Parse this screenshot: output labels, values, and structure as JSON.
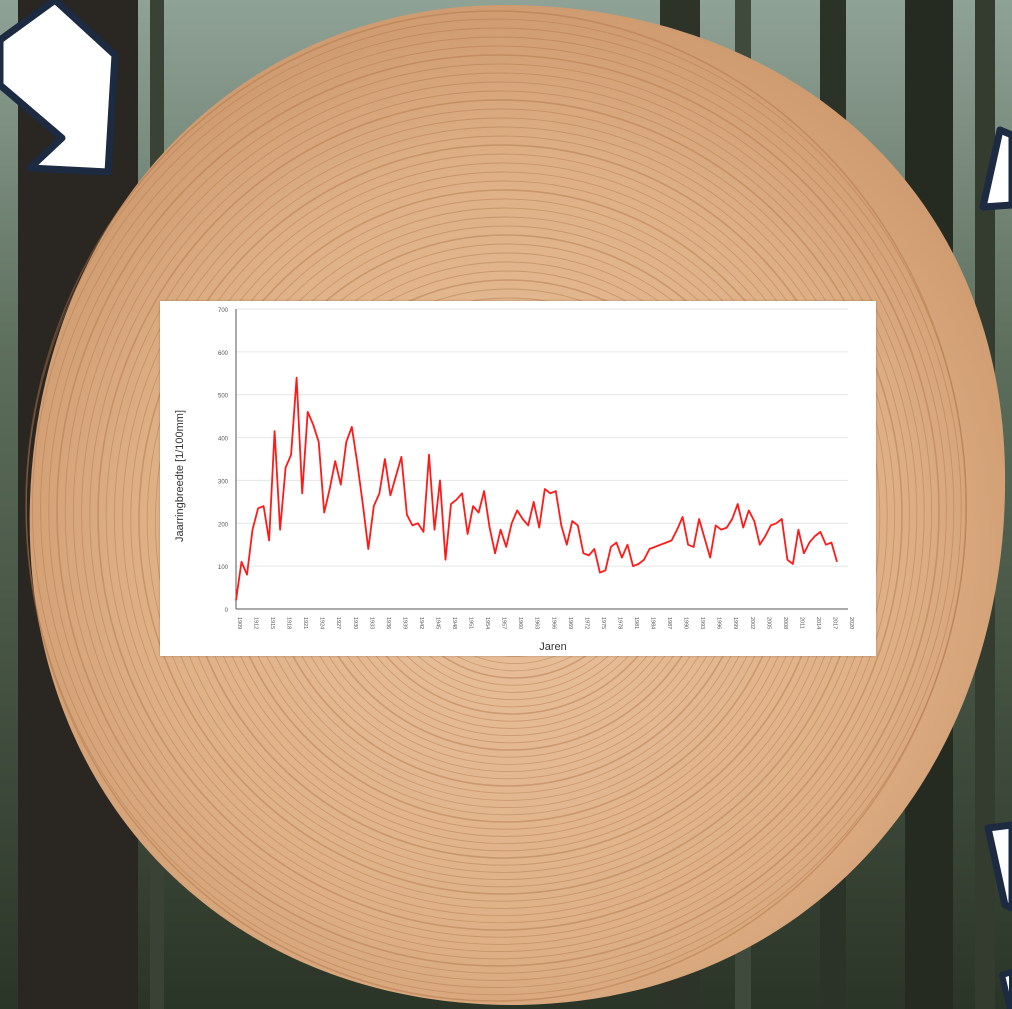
{
  "colors": {
    "line": "#ff1a1a",
    "axis": "#555555",
    "grid": "#e6e6e6",
    "wood": "#e2b389",
    "ring": "#b07448",
    "forest_dark": "#1f271d",
    "forest_light": "#6f8070",
    "arrow_fill": "#ffffff",
    "arrow_stroke": "#1c2a42"
  },
  "decor": {
    "icons": [
      "arrow-top-left-icon",
      "arrow-top-right-icon",
      "arrow-bottom-right-icon",
      "arrow-bottom-right-partial-icon"
    ]
  },
  "chart_data": {
    "type": "line",
    "title": "",
    "xlabel": "Jaren",
    "ylabel": "Jaarringbreedte [1/100mm]",
    "ylim": [
      0,
      700
    ],
    "yticks": [
      0,
      100,
      200,
      300,
      400,
      500,
      600,
      700
    ],
    "grid": true,
    "legend": "none",
    "x_start": 1909,
    "x_end": 2020,
    "xticks": [
      1909,
      1912,
      1915,
      1918,
      1921,
      1924,
      1927,
      1930,
      1933,
      1936,
      1939,
      1942,
      1945,
      1948,
      1951,
      1954,
      1957,
      1960,
      1963,
      1966,
      1969,
      1972,
      1975,
      1978,
      1981,
      1984,
      1987,
      1990,
      1993,
      1996,
      1999,
      2002,
      2005,
      2008,
      2011,
      2014,
      2017,
      2020
    ],
    "series": [
      {
        "values": [
          20,
          110,
          80,
          185,
          235,
          240,
          160,
          415,
          185,
          330,
          360,
          540,
          270,
          460,
          430,
          390,
          225,
          280,
          345,
          290,
          390,
          425,
          340,
          245,
          140,
          240,
          270,
          350,
          265,
          310,
          355,
          220,
          195,
          200,
          180,
          360,
          185,
          300,
          115,
          245,
          255,
          270,
          175,
          240,
          225,
          275,
          190,
          130,
          185,
          145,
          200,
          230,
          210,
          195,
          250,
          190,
          280,
          270,
          275,
          195,
          150,
          205,
          195,
          130,
          125,
          140,
          85,
          90,
          145,
          155,
          120,
          150,
          100,
          105,
          115,
          140,
          145,
          150,
          155,
          160,
          185,
          215,
          150,
          145,
          210,
          165,
          120,
          195,
          185,
          190,
          210,
          245,
          190,
          230,
          205,
          150,
          170,
          195,
          200,
          210,
          115,
          105,
          185,
          130,
          155,
          170,
          180,
          150,
          155,
          110
        ]
      }
    ]
  }
}
